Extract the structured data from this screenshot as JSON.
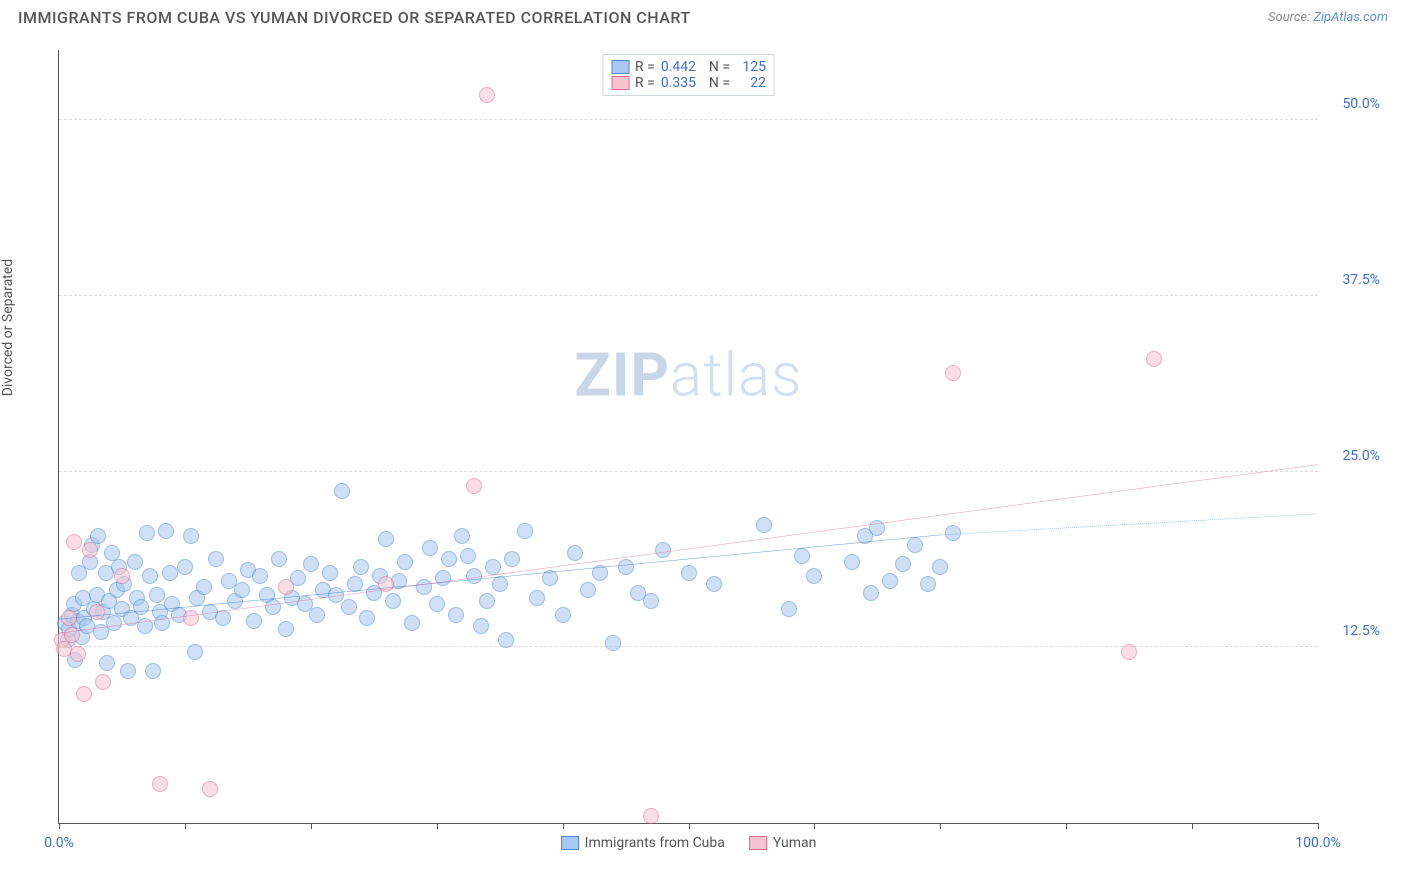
{
  "title": "IMMIGRANTS FROM CUBA VS YUMAN DIVORCED OR SEPARATED CORRELATION CHART",
  "source_label": "Source:",
  "source_link": "ZipAtlas.com",
  "ylabel": "Divorced or Separated",
  "watermark_a": "ZIP",
  "watermark_b": "atlas",
  "chart": {
    "type": "scatter",
    "background_color": "#ffffff",
    "grid_color": "#dddddd",
    "axis_color": "#555555",
    "tick_label_color": "#3a6fd8",
    "xlim": [
      0,
      100
    ],
    "ylim": [
      0,
      55
    ],
    "xticks": [
      0,
      10,
      20,
      30,
      40,
      50,
      60,
      70,
      80,
      90,
      100
    ],
    "xtick_labels": {
      "0": "0.0%",
      "100": "100.0%"
    },
    "yticks": [
      12.5,
      25.0,
      37.5,
      50.0
    ],
    "ytick_labels": [
      "12.5%",
      "25.0%",
      "37.5%",
      "50.0%"
    ],
    "marker_radius": 8,
    "marker_border_width": 1.2,
    "series": [
      {
        "name": "Immigrants from Cuba",
        "key": "cuba",
        "fill": "#a9c8ef",
        "fill_opacity": 0.55,
        "stroke": "#4a86d8",
        "R": "0.442",
        "N": "125",
        "trend": {
          "x1": 0,
          "y1": 14.5,
          "x2": 70,
          "y2": 20.5,
          "dash_x2": 100,
          "dash_y2": 22.0,
          "color": "#2f6fd0",
          "width": 2
        },
        "points": [
          [
            0.5,
            14.2
          ],
          [
            0.7,
            13.0
          ],
          [
            0.8,
            13.8
          ],
          [
            1.0,
            14.8
          ],
          [
            1.2,
            15.6
          ],
          [
            1.3,
            11.6
          ],
          [
            1.5,
            14.4
          ],
          [
            1.6,
            17.8
          ],
          [
            1.8,
            13.2
          ],
          [
            1.9,
            16.0
          ],
          [
            2.0,
            14.6
          ],
          [
            2.2,
            14.0
          ],
          [
            2.5,
            18.6
          ],
          [
            2.6,
            19.8
          ],
          [
            2.8,
            15.2
          ],
          [
            3.0,
            16.2
          ],
          [
            3.1,
            20.4
          ],
          [
            3.3,
            13.6
          ],
          [
            3.5,
            15.0
          ],
          [
            3.7,
            17.8
          ],
          [
            3.8,
            11.4
          ],
          [
            4.0,
            15.8
          ],
          [
            4.2,
            19.2
          ],
          [
            4.4,
            14.2
          ],
          [
            4.6,
            16.6
          ],
          [
            4.8,
            18.2
          ],
          [
            5.0,
            15.2
          ],
          [
            5.2,
            17.0
          ],
          [
            5.5,
            10.8
          ],
          [
            5.7,
            14.6
          ],
          [
            6.0,
            18.6
          ],
          [
            6.2,
            16.0
          ],
          [
            6.5,
            15.4
          ],
          [
            6.8,
            14.0
          ],
          [
            7.0,
            20.6
          ],
          [
            7.2,
            17.6
          ],
          [
            7.5,
            10.8
          ],
          [
            7.8,
            16.2
          ],
          [
            8.0,
            15.0
          ],
          [
            8.2,
            14.2
          ],
          [
            8.5,
            20.8
          ],
          [
            8.8,
            17.8
          ],
          [
            9.0,
            15.6
          ],
          [
            9.5,
            14.8
          ],
          [
            10.0,
            18.2
          ],
          [
            10.5,
            20.4
          ],
          [
            10.8,
            12.2
          ],
          [
            11.0,
            16.0
          ],
          [
            11.5,
            16.8
          ],
          [
            12.0,
            15.0
          ],
          [
            12.5,
            18.8
          ],
          [
            13.0,
            14.6
          ],
          [
            13.5,
            17.2
          ],
          [
            14.0,
            15.8
          ],
          [
            14.5,
            16.6
          ],
          [
            15.0,
            18.0
          ],
          [
            15.5,
            14.4
          ],
          [
            16.0,
            17.6
          ],
          [
            16.5,
            16.2
          ],
          [
            17.0,
            15.4
          ],
          [
            17.5,
            18.8
          ],
          [
            18.0,
            13.8
          ],
          [
            18.5,
            16.0
          ],
          [
            19.0,
            17.4
          ],
          [
            19.5,
            15.6
          ],
          [
            20.0,
            18.4
          ],
          [
            20.5,
            14.8
          ],
          [
            21.0,
            16.6
          ],
          [
            21.5,
            17.8
          ],
          [
            22.0,
            16.2
          ],
          [
            22.5,
            23.6
          ],
          [
            23.0,
            15.4
          ],
          [
            23.5,
            17.0
          ],
          [
            24.0,
            18.2
          ],
          [
            24.5,
            14.6
          ],
          [
            25.0,
            16.4
          ],
          [
            25.5,
            17.6
          ],
          [
            26.0,
            20.2
          ],
          [
            26.5,
            15.8
          ],
          [
            27.0,
            17.2
          ],
          [
            27.5,
            18.6
          ],
          [
            28.0,
            14.2
          ],
          [
            29.0,
            16.8
          ],
          [
            29.5,
            19.6
          ],
          [
            30.0,
            15.6
          ],
          [
            30.5,
            17.4
          ],
          [
            31.0,
            18.8
          ],
          [
            31.5,
            14.8
          ],
          [
            32.0,
            20.4
          ],
          [
            32.5,
            19.0
          ],
          [
            33.0,
            17.6
          ],
          [
            33.5,
            14.0
          ],
          [
            34.0,
            15.8
          ],
          [
            34.5,
            18.2
          ],
          [
            35.0,
            17.0
          ],
          [
            35.5,
            13.0
          ],
          [
            36.0,
            18.8
          ],
          [
            37.0,
            20.8
          ],
          [
            38.0,
            16.0
          ],
          [
            39.0,
            17.4
          ],
          [
            40.0,
            14.8
          ],
          [
            41.0,
            19.2
          ],
          [
            42.0,
            16.6
          ],
          [
            43.0,
            17.8
          ],
          [
            44.0,
            12.8
          ],
          [
            45.0,
            18.2
          ],
          [
            46.0,
            16.4
          ],
          [
            47.0,
            15.8
          ],
          [
            48.0,
            19.4
          ],
          [
            50.0,
            17.8
          ],
          [
            52.0,
            17.0
          ],
          [
            56.0,
            21.2
          ],
          [
            58.0,
            15.2
          ],
          [
            59.0,
            19.0
          ],
          [
            60.0,
            17.6
          ],
          [
            63.0,
            18.6
          ],
          [
            64.0,
            20.4
          ],
          [
            64.5,
            16.4
          ],
          [
            65.0,
            21.0
          ],
          [
            66.0,
            17.2
          ],
          [
            67.0,
            18.4
          ],
          [
            68.0,
            19.8
          ],
          [
            69.0,
            17.0
          ],
          [
            70.0,
            18.2
          ],
          [
            71.0,
            20.6
          ]
        ]
      },
      {
        "name": "Yuman",
        "key": "yuman",
        "fill": "#f5c4d1",
        "fill_opacity": 0.55,
        "stroke": "#e06a8e",
        "R": "0.335",
        "N": "22",
        "trend": {
          "x1": 0,
          "y1": 13.5,
          "x2": 100,
          "y2": 25.5,
          "color": "#e06a8e",
          "width": 2
        },
        "points": [
          [
            0.2,
            13.0
          ],
          [
            0.4,
            12.4
          ],
          [
            0.8,
            14.6
          ],
          [
            1.0,
            13.4
          ],
          [
            1.2,
            20.0
          ],
          [
            1.5,
            12.0
          ],
          [
            2.0,
            9.2
          ],
          [
            2.5,
            19.4
          ],
          [
            3.0,
            15.0
          ],
          [
            3.5,
            10.0
          ],
          [
            5.0,
            17.6
          ],
          [
            8.0,
            2.8
          ],
          [
            10.5,
            14.6
          ],
          [
            12.0,
            2.4
          ],
          [
            18.0,
            16.8
          ],
          [
            26.0,
            17.0
          ],
          [
            33.0,
            24.0
          ],
          [
            34.0,
            51.8
          ],
          [
            47.0,
            0.5
          ],
          [
            71.0,
            32.0
          ],
          [
            85.0,
            12.2
          ],
          [
            87.0,
            33.0
          ]
        ]
      }
    ]
  },
  "legend_bottom": [
    {
      "label": "Immigrants from Cuba",
      "fill": "#a9c8ef",
      "stroke": "#4a86d8"
    },
    {
      "label": "Yuman",
      "fill": "#f5c4d1",
      "stroke": "#e06a8e"
    }
  ]
}
